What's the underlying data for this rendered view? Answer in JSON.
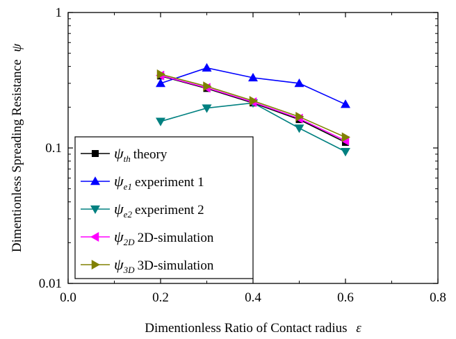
{
  "chart_data": {
    "type": "line",
    "xlabel": "Dimentionless Ratio of Contact radius",
    "xlabel_symbol": "ε",
    "ylabel": "Dimentionless Spreading Resistance",
    "ylabel_symbol": "ψ",
    "xlim": [
      0.0,
      0.8
    ],
    "ylim": [
      0.01,
      1
    ],
    "y_scale": "log",
    "x_ticks": [
      "0.0",
      "0.2",
      "0.4",
      "0.6",
      "0.8"
    ],
    "y_ticks": [
      "0.01",
      "0.1",
      "1"
    ],
    "grid": false,
    "legend_position": "bottom-left",
    "x": [
      0.2,
      0.3,
      0.4,
      0.5,
      0.6
    ],
    "series": [
      {
        "name": "theory",
        "symbol": "ψ",
        "subscript": "th",
        "marker": "square",
        "color": "#000000",
        "values": [
          0.34,
          0.275,
          0.215,
          0.162,
          0.11
        ]
      },
      {
        "name": "experiment 1",
        "symbol": "ψ",
        "subscript": "e1",
        "marker": "triangle-up",
        "color": "#0000FF",
        "values": [
          0.3,
          0.39,
          0.33,
          0.3,
          0.21
        ]
      },
      {
        "name": "experiment 2",
        "symbol": "ψ",
        "subscript": "e2",
        "marker": "triangle-down",
        "color": "#008080",
        "values": [
          0.157,
          0.197,
          0.215,
          0.14,
          0.094
        ]
      },
      {
        "name": "2D-simulation",
        "symbol": "ψ",
        "subscript": "2D",
        "marker": "triangle-left",
        "color": "#FF00FF",
        "values": [
          0.343,
          0.278,
          0.218,
          0.165,
          0.113
        ]
      },
      {
        "name": "3D-simulation",
        "symbol": "ψ",
        "subscript": "3D",
        "marker": "triangle-right",
        "color": "#808000",
        "values": [
          0.35,
          0.285,
          0.223,
          0.17,
          0.12
        ]
      }
    ]
  }
}
